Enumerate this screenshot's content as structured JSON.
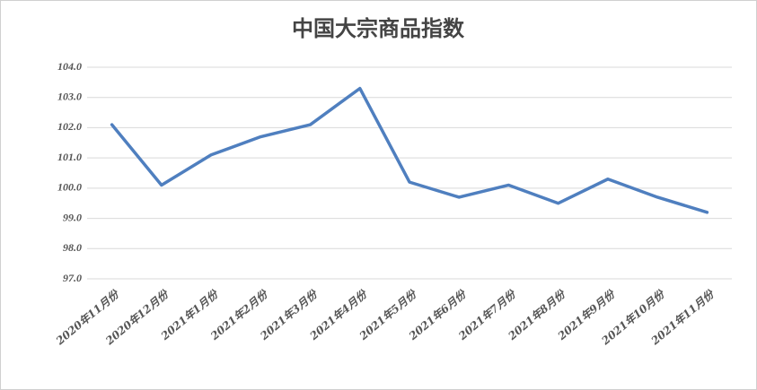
{
  "chart_data": {
    "type": "line",
    "title": "中国大宗商品指数",
    "categories": [
      "2020年11月份",
      "2020年12月份",
      "2021年1月份",
      "2021年2月份",
      "2021年3月份",
      "2021年4月份",
      "2021年5月份",
      "2021年6月份",
      "2021年7月份",
      "2021年8月份",
      "2021年9月份",
      "2021年10月份",
      "2021年11月份"
    ],
    "values": [
      102.1,
      100.1,
      101.1,
      101.7,
      102.1,
      103.3,
      100.2,
      99.7,
      100.1,
      99.5,
      100.3,
      99.7,
      99.2
    ],
    "color": "#4f7fbf",
    "ylim": [
      97,
      104
    ],
    "yticks": [
      {
        "value": 97,
        "label": "97.0"
      },
      {
        "value": 98,
        "label": "98.0"
      },
      {
        "value": 99,
        "label": "99.0"
      },
      {
        "value": 100,
        "label": "100.0"
      },
      {
        "value": 101,
        "label": "101.0"
      },
      {
        "value": 102,
        "label": "102.0"
      },
      {
        "value": 103,
        "label": "103.0"
      },
      {
        "value": 104,
        "label": "104.0"
      }
    ],
    "grid": true
  }
}
